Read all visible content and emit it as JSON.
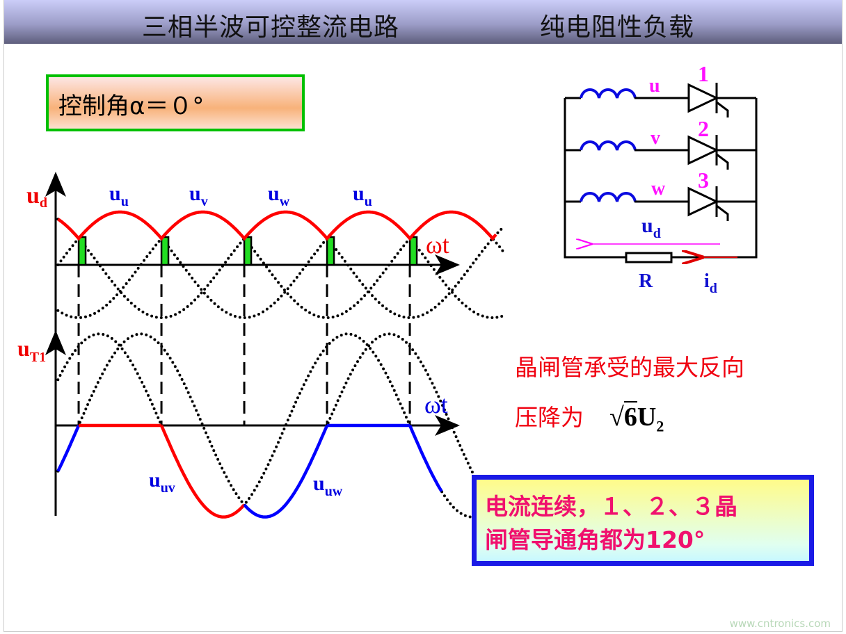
{
  "header": {
    "title": "三相半波可控整流电路",
    "subtitle": "纯电阻性负载"
  },
  "control_angle": {
    "label": "控制角α＝０°",
    "alpha_deg": 0
  },
  "waveform": {
    "top": {
      "y_label": "u",
      "y_sub": "d",
      "x_label": "ωt",
      "phase_labels": [
        {
          "main": "u",
          "sub": "u"
        },
        {
          "main": "u",
          "sub": "v"
        },
        {
          "main": "u",
          "sub": "w"
        },
        {
          "main": "u",
          "sub": "u"
        }
      ]
    },
    "bottom": {
      "y_label": "u",
      "y_sub": "T1",
      "x_label": "ωt",
      "curve_labels": [
        {
          "main": "u",
          "sub": "uv"
        },
        {
          "main": "u",
          "sub": "uw"
        }
      ]
    },
    "colors": {
      "ud": "#ff0000",
      "uT1_a": "#ff0000",
      "uT1_b": "#0000ff",
      "phases": "#000000",
      "pulse": "#22dd22"
    }
  },
  "circuit": {
    "phases": [
      {
        "name": "u",
        "thyristor": "1"
      },
      {
        "name": "v",
        "thyristor": "2"
      },
      {
        "name": "w",
        "thyristor": "3"
      }
    ],
    "load_label": "R",
    "voltage": {
      "main": "u",
      "sub": "d"
    },
    "current": {
      "main": "i",
      "sub": "d"
    }
  },
  "notes": {
    "line1": "晶闸管承受的最大反向",
    "line2": "压降为",
    "formula": {
      "radicand": "6",
      "symbol": "U",
      "sub": "2"
    }
  },
  "highlight": {
    "line1": "电流连续，１、２、３晶",
    "line2": "闸管导通角都为120°"
  },
  "watermark": "www.cntronics.com"
}
